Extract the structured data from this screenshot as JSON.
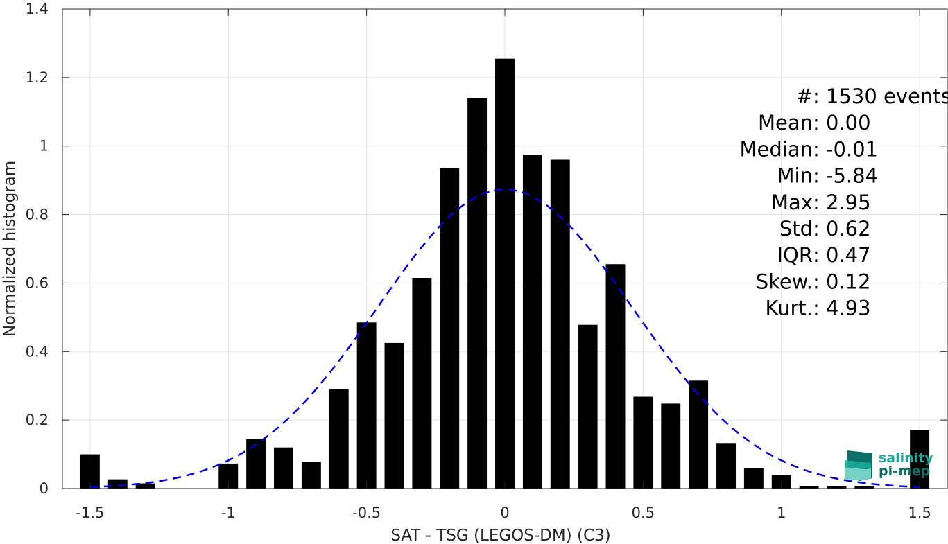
{
  "chart_data": {
    "type": "bar",
    "xlabel": "SAT - TSG (LEGOS-DM) (C3)",
    "ylabel": "Normalized histogram",
    "xlim": [
      -1.6,
      1.6
    ],
    "ylim": [
      0,
      1.4
    ],
    "grid": true,
    "xticks": [
      "-1.5",
      "-1",
      "-0.5",
      "0",
      "0.5",
      "1",
      "1.5"
    ],
    "xtick_values": [
      -1.5,
      -1,
      -0.5,
      0,
      0.5,
      1,
      1.5
    ],
    "yticks": [
      "0",
      "0.2",
      "0.4",
      "0.6",
      "0.8",
      "1",
      "1.2",
      "1.4"
    ],
    "ytick_values": [
      0,
      0.2,
      0.4,
      0.6,
      0.8,
      1.0,
      1.2,
      1.4
    ],
    "bar_width": 0.07,
    "x": [
      -1.5,
      -1.4,
      -1.3,
      -1.2,
      -1.1,
      -1.0,
      -0.9,
      -0.8,
      -0.7,
      -0.6,
      -0.5,
      -0.4,
      -0.3,
      -0.2,
      -0.1,
      0.0,
      0.1,
      0.2,
      0.3,
      0.4,
      0.5,
      0.6,
      0.7,
      0.8,
      0.9,
      1.0,
      1.1,
      1.2,
      1.3,
      1.5
    ],
    "values": [
      0.1,
      0.027,
      0.015,
      0.0,
      0.0,
      0.073,
      0.145,
      0.12,
      0.078,
      0.29,
      0.485,
      0.425,
      0.615,
      0.935,
      1.14,
      1.255,
      0.975,
      0.96,
      0.478,
      0.655,
      0.268,
      0.248,
      0.315,
      0.133,
      0.06,
      0.04,
      0.008,
      0.008,
      0.008,
      0.17
    ],
    "gaussian_fit": {
      "mean": 0.0,
      "std": 0.46,
      "peak": 0.873,
      "color": "#0000e0",
      "style": "dashed"
    },
    "bar_color": "#000000"
  },
  "stats": [
    {
      "label": "#  ",
      "value": ": 1530 events"
    },
    {
      "label": "Mean ",
      "value": ": 0.00"
    },
    {
      "label": "Median ",
      "value": ": -0.01"
    },
    {
      "label": "Min ",
      "value": ": -5.84"
    },
    {
      "label": "Max ",
      "value": ": 2.95"
    },
    {
      "label": "Std ",
      "value": ": 0.62"
    },
    {
      "label": "IQR ",
      "value": ": 0.47"
    },
    {
      "label": "Skew. ",
      "value": ": 0.12"
    },
    {
      "label": "Kurt. ",
      "value": ": 4.93"
    }
  ],
  "logo": {
    "line1": "salinity",
    "line2": "pi-mep",
    "color": "#1aa89a",
    "dark": "#0d6f66"
  }
}
